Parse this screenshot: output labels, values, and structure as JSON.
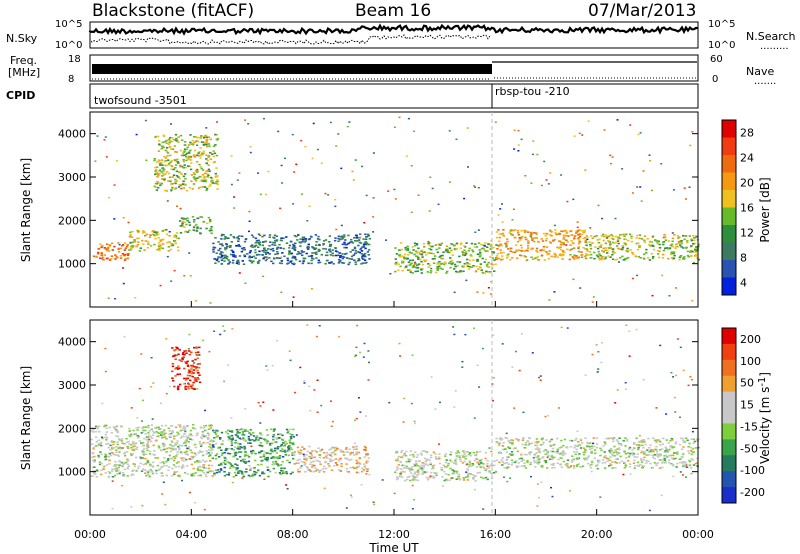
{
  "header": {
    "station": "Blackstone (fitACF)",
    "beam": "Beam 16",
    "date": "07/Mar/2013"
  },
  "left_labels": {
    "nsky": "N.Sky",
    "freq_line1": "Freq.",
    "freq_line2": "[MHz]",
    "cpid": "CPID"
  },
  "right_labels": {
    "nsearch": "N.Search",
    "nave": "Nave"
  },
  "cpid_segments": [
    "twofsound -3501",
    "rbsp-tou -210"
  ],
  "nsky_ticks": {
    "top": "10^5",
    "bottom": "10^0"
  },
  "nsearch_ticks": {
    "top": "10^5",
    "bottom": "10^0"
  },
  "freq_ticks": [
    "18",
    "8"
  ],
  "nave_ticks": [
    "60",
    "0"
  ],
  "colors": {
    "power_scale": [
      "#0022dd",
      "#2a52b0",
      "#3d7a62",
      "#2d8f3c",
      "#66bb2a",
      "#f0c020",
      "#f59a10",
      "#f06a10",
      "#f03c10",
      "#e00000"
    ],
    "velocity_scale": [
      "#1a2ecc",
      "#2255b0",
      "#267a5e",
      "#3aa44a",
      "#7ecf3e",
      "#c8c8c8",
      "#c8c8c8",
      "#f0a030",
      "#f07020",
      "#f04010",
      "#e00000"
    ]
  },
  "chart_data": [
    {
      "type": "heatmap",
      "panel": "power",
      "ylabel": "Slant Range [km]",
      "ylim": [
        0,
        4500
      ],
      "xlim": [
        0,
        24
      ],
      "y_ticks": [
        "1000",
        "2000",
        "3000",
        "4000"
      ],
      "colorbar_label": "Power [dB]",
      "colorbar_ticks": [
        "28",
        "24",
        "20",
        "16",
        "12",
        "8",
        "4"
      ],
      "colorbar_range": [
        0,
        30
      ],
      "bands": [
        {
          "t0": 0.0,
          "t1": 1.5,
          "r0": 1100,
          "r1": 1500,
          "level": 0.75
        },
        {
          "t0": 1.5,
          "t1": 3.5,
          "r0": 1300,
          "r1": 1800,
          "level": 0.55
        },
        {
          "t0": 3.5,
          "t1": 4.8,
          "r0": 1700,
          "r1": 2100,
          "level": 0.4
        },
        {
          "t0": 2.5,
          "t1": 5.0,
          "r0": 2700,
          "r1": 4000,
          "level": 0.5
        },
        {
          "t0": 4.8,
          "t1": 11.0,
          "r0": 1000,
          "r1": 1700,
          "level": 0.18
        },
        {
          "t0": 12.0,
          "t1": 16.0,
          "r0": 800,
          "r1": 1500,
          "level": 0.45
        },
        {
          "t0": 16.0,
          "t1": 19.5,
          "r0": 1100,
          "r1": 1800,
          "level": 0.65
        },
        {
          "t0": 19.5,
          "t1": 24.0,
          "r0": 1100,
          "r1": 1700,
          "level": 0.5
        }
      ]
    },
    {
      "type": "heatmap",
      "panel": "velocity",
      "ylabel": "Slant Range [km]",
      "ylim": [
        0,
        4500
      ],
      "xlim": [
        0,
        24
      ],
      "y_ticks": [
        "1000",
        "2000",
        "3000",
        "4000"
      ],
      "xlabel": "Time UT",
      "x_ticks": [
        "00:00",
        "04:00",
        "08:00",
        "12:00",
        "16:00",
        "20:00",
        "00:00"
      ],
      "colorbar_label": "Velocity [m s",
      "colorbar_label_sup": "-1",
      "colorbar_label_end": "]",
      "colorbar_ticks": [
        "200",
        "100",
        "50",
        "15",
        "-15",
        "-50",
        "-100",
        "-200"
      ],
      "colorbar_range": [
        -250,
        250
      ],
      "bands": [
        {
          "t0": 0.0,
          "t1": 4.8,
          "r0": 900,
          "r1": 2100,
          "level": 0.5
        },
        {
          "t0": 3.2,
          "t1": 4.3,
          "r0": 2900,
          "r1": 3900,
          "level": 0.95
        },
        {
          "t0": 4.8,
          "t1": 8.0,
          "r0": 900,
          "r1": 2000,
          "level": 0.3
        },
        {
          "t0": 8.0,
          "t1": 11.0,
          "r0": 1000,
          "r1": 1600,
          "level": 0.62
        },
        {
          "t0": 12.0,
          "t1": 16.0,
          "r0": 800,
          "r1": 1500,
          "level": 0.5
        },
        {
          "t0": 16.0,
          "t1": 24.0,
          "r0": 1100,
          "r1": 1800,
          "level": 0.5
        }
      ]
    }
  ]
}
